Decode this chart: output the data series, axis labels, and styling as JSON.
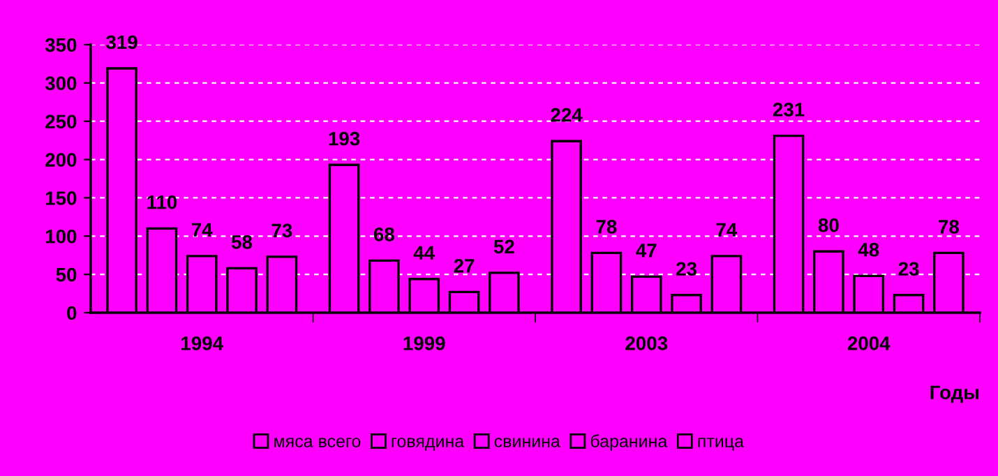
{
  "chart_data": {
    "type": "bar",
    "xlabel": "Годы",
    "categories": [
      "1994",
      "1999",
      "2003",
      "2004"
    ],
    "series": [
      {
        "name": "мяса всего",
        "color": "#ff00ff",
        "values": [
          319,
          193,
          224,
          231
        ]
      },
      {
        "name": "говядина",
        "color": "#ff00ff",
        "values": [
          110,
          68,
          78,
          80
        ]
      },
      {
        "name": "свинина",
        "color": "#ff00ff",
        "values": [
          74,
          44,
          47,
          48
        ]
      },
      {
        "name": "баранина",
        "color": "#ff00ff",
        "values": [
          58,
          27,
          23,
          23
        ]
      },
      {
        "name": "птица",
        "color": "#ff00ff",
        "values": [
          73,
          52,
          74,
          78
        ]
      }
    ],
    "ylim": [
      0,
      350
    ],
    "yticks": [
      0,
      50,
      100,
      150,
      200,
      250,
      300,
      350
    ],
    "grid": "y",
    "legend": "bottom",
    "data_labels": true
  }
}
